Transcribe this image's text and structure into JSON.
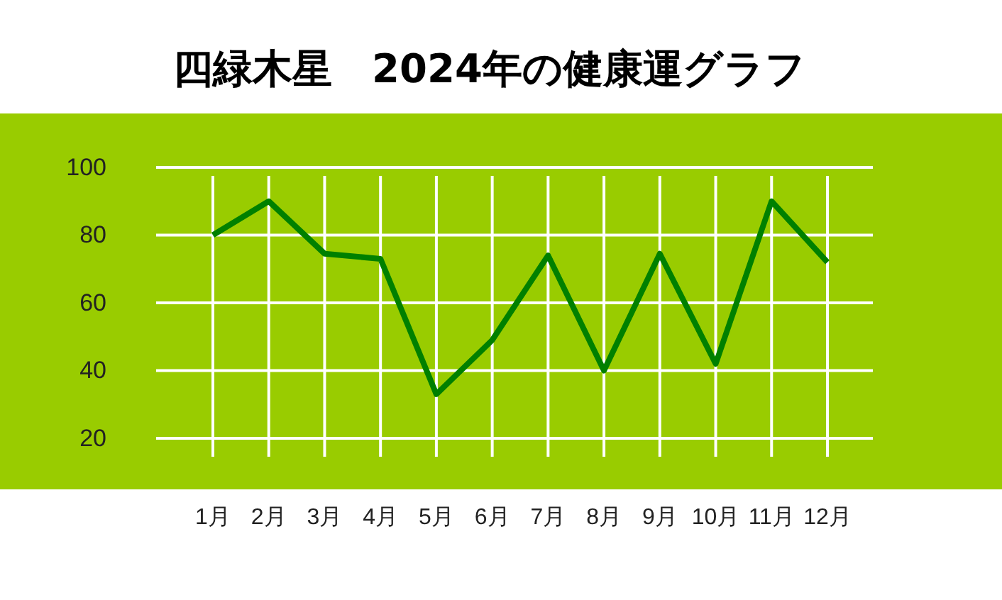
{
  "chart_data": {
    "type": "line",
    "title": "四緑木星　2024年の健康運グラフ",
    "categories": [
      "1月",
      "2月",
      "3月",
      "4月",
      "5月",
      "6月",
      "7月",
      "8月",
      "9月",
      "10月",
      "11月",
      "12月"
    ],
    "series": [
      {
        "color": "#008000",
        "values": [
          80,
          90,
          74.5,
          73,
          33,
          49,
          74,
          40,
          74.5,
          42,
          90,
          72
        ]
      }
    ],
    "ylim": [
      20,
      100
    ],
    "yticks": [
      20,
      40,
      60,
      80,
      100
    ],
    "grid": true,
    "marker": "none",
    "line_style": "solid"
  }
}
